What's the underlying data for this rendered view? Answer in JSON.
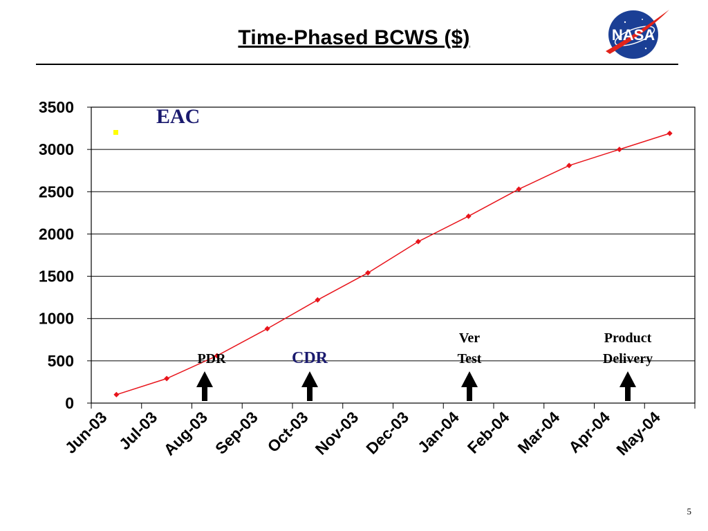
{
  "slide": {
    "title": "Time-Phased BCWS ($)",
    "page_number": "5",
    "logo_text": "NASA"
  },
  "chart_data": {
    "type": "line",
    "title": "Time-Phased BCWS ($)",
    "xlabel": "",
    "ylabel": "",
    "ylim": [
      0,
      3500
    ],
    "yticks": [
      "0",
      "500",
      "1000",
      "1500",
      "2000",
      "2500",
      "3000",
      "3500"
    ],
    "categories": [
      "Jun-03",
      "Jul-03",
      "Aug-03",
      "Sep-03",
      "Oct-03",
      "Nov-03",
      "Dec-03",
      "Jan-04",
      "Feb-04",
      "Mar-04",
      "Apr-04",
      "May-04"
    ],
    "grid": "horizontal",
    "series": [
      {
        "color": "#e8141b",
        "values": [
          100,
          290,
          560,
          880,
          1220,
          1540,
          1910,
          2210,
          2530,
          2810,
          3000,
          3190
        ]
      }
    ],
    "eac_label": "EAC",
    "eac_marker_color": "#ffff00",
    "eac_label_color": "#1a1a6e",
    "milestones": [
      {
        "label": "PDR",
        "month_index": 2,
        "label_color": "#000000"
      },
      {
        "label": "CDR",
        "month_index": 4,
        "label_color": "#1a1a6e"
      },
      {
        "label": "Ver Test",
        "month_index": 7,
        "label_color": "#000000"
      },
      {
        "label": "Product Delivery",
        "month_index": 10,
        "label_color": "#000000"
      }
    ]
  }
}
